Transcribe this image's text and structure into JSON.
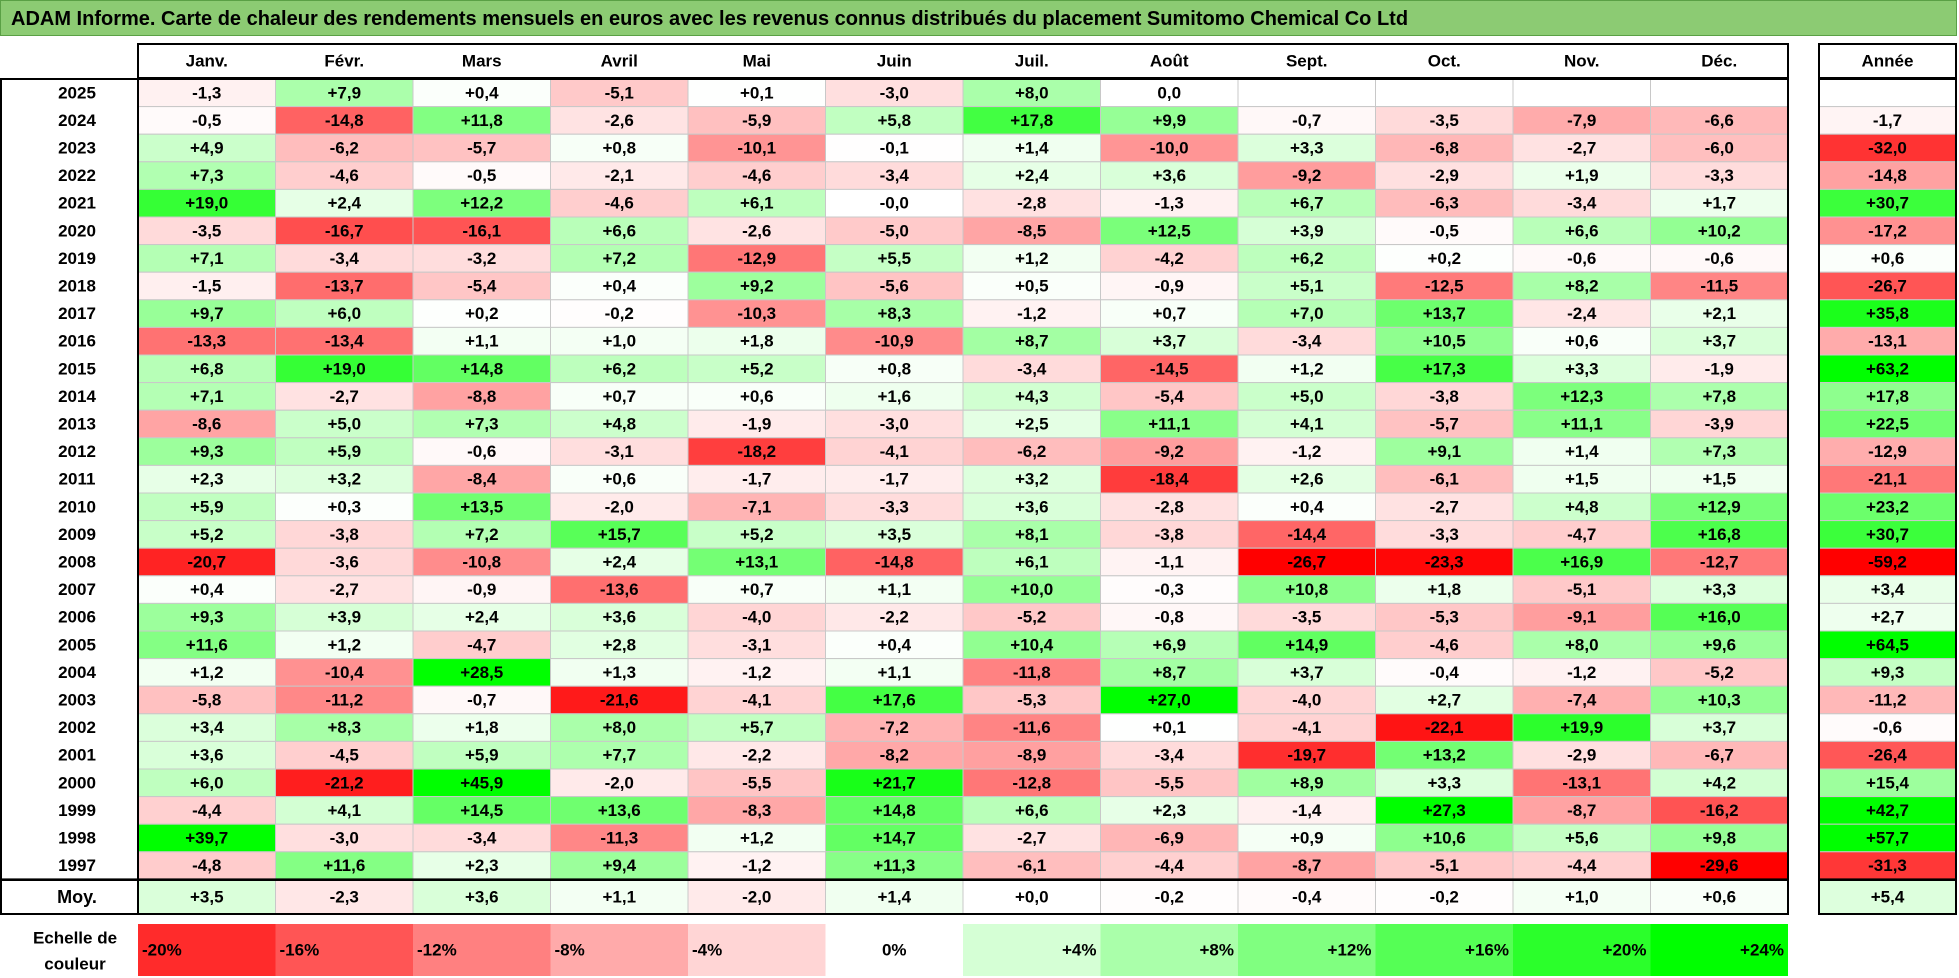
{
  "title": "ADAM Informe. Carte de chaleur des rendements mensuels en euros avec les revenus connus distribués du placement Sumitomo Chemical Co Ltd",
  "colors": {
    "min_red": "#ff0000",
    "neutral": "#ffffff",
    "max_green": "#00ff00",
    "border": "#000000",
    "grid": "#c8c8c8"
  },
  "chart_data": {
    "type": "heatmap",
    "columns": [
      "Janv.",
      "Févr.",
      "Mars",
      "Avril",
      "Mai",
      "Juin",
      "Juil.",
      "Août",
      "Sept.",
      "Oct.",
      "Nov.",
      "Déc."
    ],
    "annual_header": "Année",
    "rows": [
      {
        "year": "2025",
        "months": [
          "-1,3",
          "+7,9",
          "+0,4",
          "-5,1",
          "+0,1",
          "-3,0",
          "+8,0",
          "0,0",
          "",
          "",
          "",
          ""
        ],
        "annual": ""
      },
      {
        "year": "2024",
        "months": [
          "-0,5",
          "-14,8",
          "+11,8",
          "-2,6",
          "-5,9",
          "+5,8",
          "+17,8",
          "+9,9",
          "-0,7",
          "-3,5",
          "-7,9",
          "-6,6"
        ],
        "annual": "-1,7"
      },
      {
        "year": "2023",
        "months": [
          "+4,9",
          "-6,2",
          "-5,7",
          "+0,8",
          "-10,1",
          "-0,1",
          "+1,4",
          "-10,0",
          "+3,3",
          "-6,8",
          "-2,7",
          "-6,0"
        ],
        "annual": "-32,0"
      },
      {
        "year": "2022",
        "months": [
          "+7,3",
          "-4,6",
          "-0,5",
          "-2,1",
          "-4,6",
          "-3,4",
          "+2,4",
          "+3,6",
          "-9,2",
          "-2,9",
          "+1,9",
          "-3,3"
        ],
        "annual": "-14,8"
      },
      {
        "year": "2021",
        "months": [
          "+19,0",
          "+2,4",
          "+12,2",
          "-4,6",
          "+6,1",
          "-0,0",
          "-2,8",
          "-1,3",
          "+6,7",
          "-6,3",
          "-3,4",
          "+1,7"
        ],
        "annual": "+30,7"
      },
      {
        "year": "2020",
        "months": [
          "-3,5",
          "-16,7",
          "-16,1",
          "+6,6",
          "-2,6",
          "-5,0",
          "-8,5",
          "+12,5",
          "+3,9",
          "-0,5",
          "+6,6",
          "+10,2"
        ],
        "annual": "-17,2"
      },
      {
        "year": "2019",
        "months": [
          "+7,1",
          "-3,4",
          "-3,2",
          "+7,2",
          "-12,9",
          "+5,5",
          "+1,2",
          "-4,2",
          "+6,2",
          "+0,2",
          "-0,6",
          "-0,6"
        ],
        "annual": "+0,6"
      },
      {
        "year": "2018",
        "months": [
          "-1,5",
          "-13,7",
          "-5,4",
          "+0,4",
          "+9,2",
          "-5,6",
          "+0,5",
          "-0,9",
          "+5,1",
          "-12,5",
          "+8,2",
          "-11,5"
        ],
        "annual": "-26,7"
      },
      {
        "year": "2017",
        "months": [
          "+9,7",
          "+6,0",
          "+0,2",
          "-0,2",
          "-10,3",
          "+8,3",
          "-1,2",
          "+0,7",
          "+7,0",
          "+13,7",
          "-2,4",
          "+2,1"
        ],
        "annual": "+35,8"
      },
      {
        "year": "2016",
        "months": [
          "-13,3",
          "-13,4",
          "+1,1",
          "+1,0",
          "+1,8",
          "-10,9",
          "+8,7",
          "+3,7",
          "-3,4",
          "+10,5",
          "+0,6",
          "+3,7"
        ],
        "annual": "-13,1"
      },
      {
        "year": "2015",
        "months": [
          "+6,8",
          "+19,0",
          "+14,8",
          "+6,2",
          "+5,2",
          "+0,8",
          "-3,4",
          "-14,5",
          "+1,2",
          "+17,3",
          "+3,3",
          "-1,9"
        ],
        "annual": "+63,2"
      },
      {
        "year": "2014",
        "months": [
          "+7,1",
          "-2,7",
          "-8,8",
          "+0,7",
          "+0,6",
          "+1,6",
          "+4,3",
          "-5,4",
          "+5,0",
          "-3,8",
          "+12,3",
          "+7,8"
        ],
        "annual": "+17,8"
      },
      {
        "year": "2013",
        "months": [
          "-8,6",
          "+5,0",
          "+7,3",
          "+4,8",
          "-1,9",
          "-3,0",
          "+2,5",
          "+11,1",
          "+4,1",
          "-5,7",
          "+11,1",
          "-3,9"
        ],
        "annual": "+22,5"
      },
      {
        "year": "2012",
        "months": [
          "+9,3",
          "+5,9",
          "-0,6",
          "-3,1",
          "-18,2",
          "-4,1",
          "-6,2",
          "-9,2",
          "-1,2",
          "+9,1",
          "+1,4",
          "+7,3"
        ],
        "annual": "-12,9"
      },
      {
        "year": "2011",
        "months": [
          "+2,3",
          "+3,2",
          "-8,4",
          "+0,6",
          "-1,7",
          "-1,7",
          "+3,2",
          "-18,4",
          "+2,6",
          "-6,1",
          "+1,5",
          "+1,5"
        ],
        "annual": "-21,1"
      },
      {
        "year": "2010",
        "months": [
          "+5,9",
          "+0,3",
          "+13,5",
          "-2,0",
          "-7,1",
          "-3,3",
          "+3,6",
          "-2,8",
          "+0,4",
          "-2,7",
          "+4,8",
          "+12,9"
        ],
        "annual": "+23,2"
      },
      {
        "year": "2009",
        "months": [
          "+5,2",
          "-3,8",
          "+7,2",
          "+15,7",
          "+5,2",
          "+3,5",
          "+8,1",
          "-3,8",
          "-14,4",
          "-3,3",
          "-4,7",
          "+16,8"
        ],
        "annual": "+30,7"
      },
      {
        "year": "2008",
        "months": [
          "-20,7",
          "-3,6",
          "-10,8",
          "+2,4",
          "+13,1",
          "-14,8",
          "+6,1",
          "-1,1",
          "-26,7",
          "-23,3",
          "+16,9",
          "-12,7"
        ],
        "annual": "-59,2"
      },
      {
        "year": "2007",
        "months": [
          "+0,4",
          "-2,7",
          "-0,9",
          "-13,6",
          "+0,7",
          "+1,1",
          "+10,0",
          "-0,3",
          "+10,8",
          "+1,8",
          "-5,1",
          "+3,3"
        ],
        "annual": "+3,4"
      },
      {
        "year": "2006",
        "months": [
          "+9,3",
          "+3,9",
          "+2,4",
          "+3,6",
          "-4,0",
          "-2,2",
          "-5,2",
          "-0,8",
          "-3,5",
          "-5,3",
          "-9,1",
          "+16,0"
        ],
        "annual": "+2,7"
      },
      {
        "year": "2005",
        "months": [
          "+11,6",
          "+1,2",
          "-4,7",
          "+2,8",
          "-3,1",
          "+0,4",
          "+10,4",
          "+6,9",
          "+14,9",
          "-4,6",
          "+8,0",
          "+9,6"
        ],
        "annual": "+64,5"
      },
      {
        "year": "2004",
        "months": [
          "+1,2",
          "-10,4",
          "+28,5",
          "+1,3",
          "-1,2",
          "+1,1",
          "-11,8",
          "+8,7",
          "+3,7",
          "-0,4",
          "-1,2",
          "-5,2"
        ],
        "annual": "+9,3"
      },
      {
        "year": "2003",
        "months": [
          "-5,8",
          "-11,2",
          "-0,7",
          "-21,6",
          "-4,1",
          "+17,6",
          "-5,3",
          "+27,0",
          "-4,0",
          "+2,7",
          "-7,4",
          "+10,3"
        ],
        "annual": "-11,2"
      },
      {
        "year": "2002",
        "months": [
          "+3,4",
          "+8,3",
          "+1,8",
          "+8,0",
          "+5,7",
          "-7,2",
          "-11,6",
          "+0,1",
          "-4,1",
          "-22,1",
          "+19,9",
          "+3,7"
        ],
        "annual": "-0,6"
      },
      {
        "year": "2001",
        "months": [
          "+3,6",
          "-4,5",
          "+5,9",
          "+7,7",
          "-2,2",
          "-8,2",
          "-8,9",
          "-3,4",
          "-19,7",
          "+13,2",
          "-2,9",
          "-6,7"
        ],
        "annual": "-26,4"
      },
      {
        "year": "2000",
        "months": [
          "+6,0",
          "-21,2",
          "+45,9",
          "-2,0",
          "-5,5",
          "+21,7",
          "-12,8",
          "-5,5",
          "+8,9",
          "+3,3",
          "-13,1",
          "+4,2"
        ],
        "annual": "+15,4"
      },
      {
        "year": "1999",
        "months": [
          "-4,4",
          "+4,1",
          "+14,5",
          "+13,6",
          "-8,3",
          "+14,8",
          "+6,6",
          "+2,3",
          "-1,4",
          "+27,3",
          "-8,7",
          "-16,2"
        ],
        "annual": "+42,7"
      },
      {
        "year": "1998",
        "months": [
          "+39,7",
          "-3,0",
          "-3,4",
          "-11,3",
          "+1,2",
          "+14,7",
          "-2,7",
          "-6,9",
          "+0,9",
          "+10,6",
          "+5,6",
          "+9,8"
        ],
        "annual": "+57,7"
      },
      {
        "year": "1997",
        "months": [
          "-4,8",
          "+11,6",
          "+2,3",
          "+9,4",
          "-1,2",
          "+11,3",
          "-6,1",
          "-4,4",
          "-8,7",
          "-5,1",
          "-4,4",
          "-29,6"
        ],
        "annual": "-31,3"
      }
    ],
    "average": {
      "label": "Moy.",
      "months": [
        "+3,5",
        "-2,3",
        "+3,6",
        "+1,1",
        "-2,0",
        "+1,4",
        "+0,0",
        "-0,2",
        "-0,4",
        "-0,2",
        "+1,0",
        "+0,6"
      ],
      "annual": "+5,4"
    },
    "scale": {
      "label_line1": "Echelle de",
      "label_line2": "couleur",
      "steps": [
        "-20%",
        "-16%",
        "-12%",
        "-8%",
        "-4%",
        "0%",
        "+4%",
        "+8%",
        "+12%",
        "+16%",
        "+20%",
        "+24%"
      ],
      "values": [
        -20,
        -16,
        -12,
        -8,
        -4,
        0,
        4,
        8,
        12,
        16,
        20,
        24
      ]
    }
  }
}
